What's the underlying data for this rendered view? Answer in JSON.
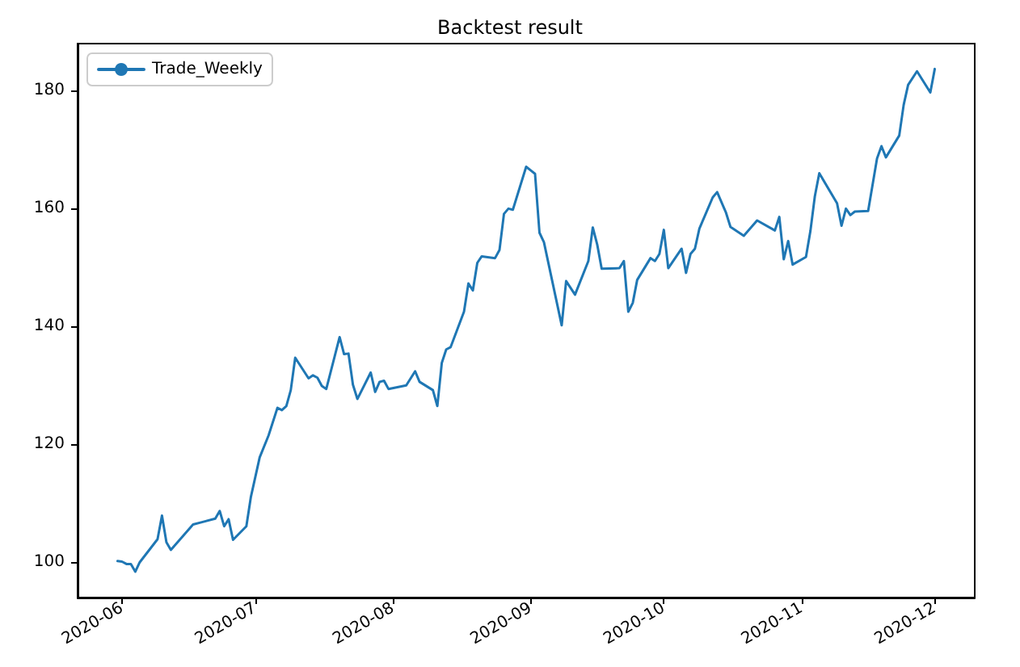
{
  "chart_data": {
    "type": "line",
    "title": "Backtest result",
    "x": [
      "2020-05-31",
      "2020-06-01",
      "2020-06-02",
      "2020-06-03",
      "2020-06-04",
      "2020-06-05",
      "2020-06-09",
      "2020-06-10",
      "2020-06-11",
      "2020-06-12",
      "2020-06-17",
      "2020-06-19",
      "2020-06-22",
      "2020-06-23",
      "2020-06-24",
      "2020-06-25",
      "2020-06-26",
      "2020-06-29",
      "2020-06-30",
      "2020-07-02",
      "2020-07-04",
      "2020-07-06",
      "2020-07-07",
      "2020-07-08",
      "2020-07-09",
      "2020-07-10",
      "2020-07-13",
      "2020-07-14",
      "2020-07-15",
      "2020-07-16",
      "2020-07-17",
      "2020-07-20",
      "2020-07-21",
      "2020-07-22",
      "2020-07-23",
      "2020-07-24",
      "2020-07-27",
      "2020-07-28",
      "2020-07-29",
      "2020-07-30",
      "2020-07-31",
      "2020-08-04",
      "2020-08-06",
      "2020-08-07",
      "2020-08-10",
      "2020-08-11",
      "2020-08-12",
      "2020-08-13",
      "2020-08-14",
      "2020-08-17",
      "2020-08-18",
      "2020-08-19",
      "2020-08-20",
      "2020-08-21",
      "2020-08-24",
      "2020-08-25",
      "2020-08-26",
      "2020-08-27",
      "2020-08-28",
      "2020-08-31",
      "2020-09-01",
      "2020-09-02",
      "2020-09-03",
      "2020-09-04",
      "2020-09-08",
      "2020-09-09",
      "2020-09-11",
      "2020-09-14",
      "2020-09-15",
      "2020-09-16",
      "2020-09-17",
      "2020-09-21",
      "2020-09-22",
      "2020-09-23",
      "2020-09-24",
      "2020-09-25",
      "2020-09-28",
      "2020-09-29",
      "2020-09-30",
      "2020-10-01",
      "2020-10-02",
      "2020-10-05",
      "2020-10-06",
      "2020-10-07",
      "2020-10-08",
      "2020-10-09",
      "2020-10-12",
      "2020-10-13",
      "2020-10-15",
      "2020-10-16",
      "2020-10-19",
      "2020-10-22",
      "2020-10-26",
      "2020-10-27",
      "2020-10-28",
      "2020-10-29",
      "2020-10-30",
      "2020-11-02",
      "2020-11-03",
      "2020-11-04",
      "2020-11-05",
      "2020-11-09",
      "2020-11-10",
      "2020-11-11",
      "2020-11-12",
      "2020-11-13",
      "2020-11-16",
      "2020-11-18",
      "2020-11-19",
      "2020-11-20",
      "2020-11-23",
      "2020-11-24",
      "2020-11-25",
      "2020-11-27",
      "2020-11-30",
      "2020-12-01"
    ],
    "series": [
      {
        "name": "Trade_Weekly",
        "color": "#1f77b4",
        "values": [
          100.2,
          100.1,
          99.7,
          99.7,
          98.4,
          100,
          103.9,
          107.9,
          103.4,
          102.1,
          106.4,
          106.8,
          107.4,
          108.7,
          106.1,
          107.3,
          103.8,
          106.1,
          111,
          117.8,
          121.5,
          126.2,
          125.8,
          126.5,
          129.2,
          134.7,
          131.2,
          131.7,
          131.3,
          129.9,
          129.4,
          138.2,
          135.3,
          135.4,
          130.1,
          127.7,
          132.2,
          128.9,
          130.6,
          130.8,
          129.4,
          130,
          132.4,
          130.6,
          129.2,
          126.5,
          133.8,
          136.1,
          136.5,
          142.5,
          147.3,
          146.1,
          150.8,
          151.9,
          151.6,
          153,
          159.1,
          160,
          159.8,
          167.1,
          166.5,
          165.9,
          155.9,
          154.3,
          140.2,
          147.7,
          145.4,
          151.1,
          156.8,
          153.9,
          149.8,
          149.9,
          151.1,
          142.5,
          144,
          147.9,
          151.6,
          151.1,
          152.3,
          156.4,
          149.9,
          153.2,
          149.1,
          152.3,
          153.2,
          156.6,
          161.9,
          162.8,
          159.3,
          156.9,
          155.4,
          158,
          156.3,
          158.6,
          151.4,
          154.5,
          150.5,
          151.8,
          156.2,
          162.1,
          166,
          160.9,
          157.1,
          160,
          158.9,
          159.5,
          159.6,
          168.5,
          170.6,
          168.7,
          172.4,
          177.6,
          181,
          183.3,
          179.7,
          183.7
        ]
      }
    ],
    "xlim": [
      "2020-05-22",
      "2020-12-10"
    ],
    "xticks": [
      {
        "value": "2020-06-01",
        "label": "2020-06"
      },
      {
        "value": "2020-07-01",
        "label": "2020-07"
      },
      {
        "value": "2020-08-01",
        "label": "2020-08"
      },
      {
        "value": "2020-09-01",
        "label": "2020-09"
      },
      {
        "value": "2020-10-01",
        "label": "2020-10"
      },
      {
        "value": "2020-11-01",
        "label": "2020-11"
      },
      {
        "value": "2020-12-01",
        "label": "2020-12"
      }
    ],
    "ylim": [
      94,
      188
    ],
    "yticks": [
      100,
      120,
      140,
      160,
      180
    ],
    "legend": "top left",
    "grid": false,
    "marker": "none",
    "line_style": "solid"
  }
}
